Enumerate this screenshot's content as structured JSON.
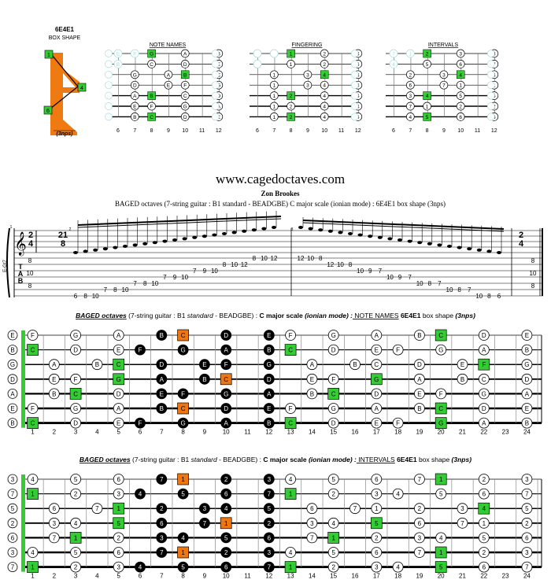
{
  "box": {
    "code": "6E4E1",
    "label": "BOX SHAPE",
    "footer": "(3nps)",
    "fingers": [
      "1",
      "4",
      "6"
    ]
  },
  "mini": {
    "titles": [
      "NOTE NAMES",
      "FINGERING",
      "INTERVALS"
    ],
    "frets": [
      "6",
      "7",
      "8",
      "9",
      "10",
      "11",
      "12"
    ],
    "notes": [
      [
        "E",
        "F",
        "G",
        "A",
        "B"
      ],
      [
        "B",
        "C",
        "D",
        "E"
      ],
      [
        "G",
        "A",
        "B",
        "C"
      ],
      [
        "D",
        "E",
        "F",
        "G"
      ],
      [
        "A",
        "B",
        "C",
        "D"
      ],
      [
        "E",
        "F",
        "G",
        "A"
      ],
      [
        "B",
        "C",
        "D",
        "E"
      ]
    ],
    "fingering": [
      [
        "1",
        "2",
        "4"
      ],
      [
        "1",
        "2",
        "4"
      ],
      [
        "1",
        "3",
        "4"
      ],
      [
        "1",
        "3",
        "4"
      ],
      [
        "1",
        "2",
        "4"
      ],
      [
        "1",
        "2",
        "4"
      ],
      [
        "1",
        "2",
        "4"
      ]
    ],
    "intervals": [
      [
        "7",
        "1",
        "2",
        "3"
      ],
      [
        "4",
        "5",
        "6",
        "7"
      ],
      [
        "2",
        "3",
        "4"
      ],
      [
        "6",
        "7",
        "1"
      ],
      [
        "3",
        "4",
        "5"
      ],
      [
        "7",
        "1",
        "2"
      ],
      [
        "4",
        "5",
        "6"
      ]
    ]
  },
  "header": {
    "site": "www.cagedoctaves.com",
    "author": "Zon Brookes",
    "subtitle": "BAGED octaves (7-string guitar : B1 standard - BEADGBE) C major scale (ionian mode) : 6E4E1 box shape (3nps)"
  },
  "score": {
    "tuning": "E-Gt7",
    "time1": "2/4",
    "time2": "21/8",
    "tab": [
      "T",
      "A",
      "B"
    ],
    "tab_asc": [
      "6",
      "8",
      "10",
      "7",
      "8",
      "10",
      "7",
      "8",
      "10",
      "7",
      "9",
      "10",
      "7",
      "9",
      "10",
      "8",
      "10",
      "12",
      "8",
      "10",
      "12"
    ],
    "tab_desc": [
      "12",
      "10",
      "8",
      "12",
      "10",
      "8",
      "10",
      "9",
      "7",
      "10",
      "9",
      "7",
      "10",
      "8",
      "7",
      "10",
      "8",
      "7",
      "10",
      "8",
      "6"
    ],
    "end_tab": [
      "8",
      "10",
      "8"
    ],
    "measure_nums": [
      "1",
      "2",
      "3"
    ]
  },
  "neck1": {
    "title_bold": "BAGED octaves",
    "title_rest": "(7-string guitar : B1",
    "title_std": "standard",
    "title_tune": "- BEADGBE)",
    "title_scale": "C major scale",
    "title_mode": "(ionian mode)",
    "title_kind": "NOTE NAMES",
    "title_box": "6E4E1",
    "title_shape": "box shape",
    "title_nps": "(3nps)",
    "open": [
      "E",
      "B",
      "G",
      "D",
      "A",
      "E",
      "B"
    ],
    "strings": [
      [
        "F",
        "",
        "G",
        "",
        "A",
        "",
        "B",
        "C",
        "",
        "D",
        "",
        "E",
        "F",
        "",
        "G",
        "",
        "A",
        "",
        "B",
        "C",
        "",
        "D",
        "",
        "E"
      ],
      [
        "C",
        "",
        "D",
        "",
        "E",
        "F",
        "",
        "G",
        "",
        "A",
        "",
        "B",
        "C",
        "",
        "D",
        "",
        "E",
        "F",
        "",
        "G",
        "",
        "A",
        "",
        "B"
      ],
      [
        "",
        "A",
        "",
        "B",
        "C",
        "",
        "D",
        "",
        "E",
        "F",
        "",
        "G",
        "",
        "A",
        "",
        "B",
        "C",
        "",
        "D",
        "",
        "E",
        "F",
        "",
        "G"
      ],
      [
        "",
        "E",
        "F",
        "",
        "G",
        "",
        "A",
        "",
        "B",
        "C",
        "",
        "D",
        "",
        "E",
        "F",
        "",
        "G",
        "",
        "A",
        "",
        "B",
        "C",
        "",
        "D"
      ],
      [
        "",
        "B",
        "C",
        "",
        "D",
        "",
        "E",
        "F",
        "",
        "G",
        "",
        "A",
        "",
        "B",
        "C",
        "",
        "D",
        "",
        "E",
        "F",
        "",
        "G",
        "",
        "A"
      ],
      [
        "F",
        "",
        "G",
        "",
        "A",
        "",
        "B",
        "C",
        "",
        "D",
        "",
        "E",
        "F",
        "",
        "G",
        "",
        "A",
        "",
        "B",
        "C",
        "",
        "D",
        "",
        "E"
      ],
      [
        "C",
        "",
        "D",
        "",
        "E",
        "F",
        "",
        "G",
        "",
        "A",
        "",
        "B",
        "C",
        "",
        "D",
        "",
        "E",
        "F",
        "",
        "G",
        "",
        "A",
        "",
        "B"
      ]
    ]
  },
  "neck2": {
    "title_bold": "BAGED octaves",
    "title_rest": "(7-string guitar : B1",
    "title_std": "standard",
    "title_tune": "- BEADGBE)",
    "title_scale": "C major scale",
    "title_mode": "(ionian mode)",
    "title_kind": "INTERVALS",
    "title_box": "6E4E1",
    "title_shape": "box shape",
    "title_nps": "(3nps)",
    "open": [
      "3",
      "7",
      "5",
      "2",
      "6",
      "3",
      "7"
    ],
    "strings": [
      [
        "4",
        "",
        "5",
        "",
        "6",
        "",
        "7",
        "1",
        "",
        "2",
        "",
        "3",
        "4",
        "",
        "5",
        "",
        "6",
        "",
        "7",
        "1",
        "",
        "2",
        "",
        "3"
      ],
      [
        "1",
        "",
        "2",
        "",
        "3",
        "4",
        "",
        "5",
        "",
        "6",
        "",
        "7",
        "1",
        "",
        "2",
        "",
        "3",
        "4",
        "",
        "5",
        "",
        "6",
        "",
        "7"
      ],
      [
        "",
        "6",
        "",
        "7",
        "1",
        "",
        "2",
        "",
        "3",
        "4",
        "",
        "5",
        "",
        "6",
        "",
        "7",
        "1",
        "",
        "2",
        "",
        "3",
        "4",
        "",
        "5"
      ],
      [
        "",
        "3",
        "4",
        "",
        "5",
        "",
        "6",
        "",
        "7",
        "1",
        "",
        "2",
        "",
        "3",
        "4",
        "",
        "5",
        "",
        "6",
        "",
        "7",
        "1",
        "",
        "2"
      ],
      [
        "",
        "7",
        "1",
        "",
        "2",
        "",
        "3",
        "4",
        "",
        "5",
        "",
        "6",
        "",
        "7",
        "1",
        "",
        "2",
        "",
        "3",
        "4",
        "",
        "5",
        "",
        "6"
      ],
      [
        "4",
        "",
        "5",
        "",
        "6",
        "",
        "7",
        "1",
        "",
        "2",
        "",
        "3",
        "4",
        "",
        "5",
        "",
        "6",
        "",
        "7",
        "1",
        "",
        "2",
        "",
        "3"
      ],
      [
        "1",
        "",
        "2",
        "",
        "3",
        "4",
        "",
        "5",
        "",
        "6",
        "",
        "7",
        "1",
        "",
        "2",
        "",
        "3",
        "4",
        "",
        "5",
        "",
        "6",
        "",
        "7"
      ]
    ]
  },
  "fret_numbers": [
    "1",
    "2",
    "3",
    "4",
    "5",
    "6",
    "7",
    "8",
    "9",
    "10",
    "11",
    "12",
    "13",
    "14",
    "15",
    "16",
    "17",
    "18",
    "19",
    "20",
    "21",
    "22",
    "23",
    "24"
  ],
  "colors": {
    "green": "#33cc33",
    "orange": "#ee7711",
    "black": "#000000",
    "ghost": "#aadddd",
    "shape": "#f07a12"
  }
}
